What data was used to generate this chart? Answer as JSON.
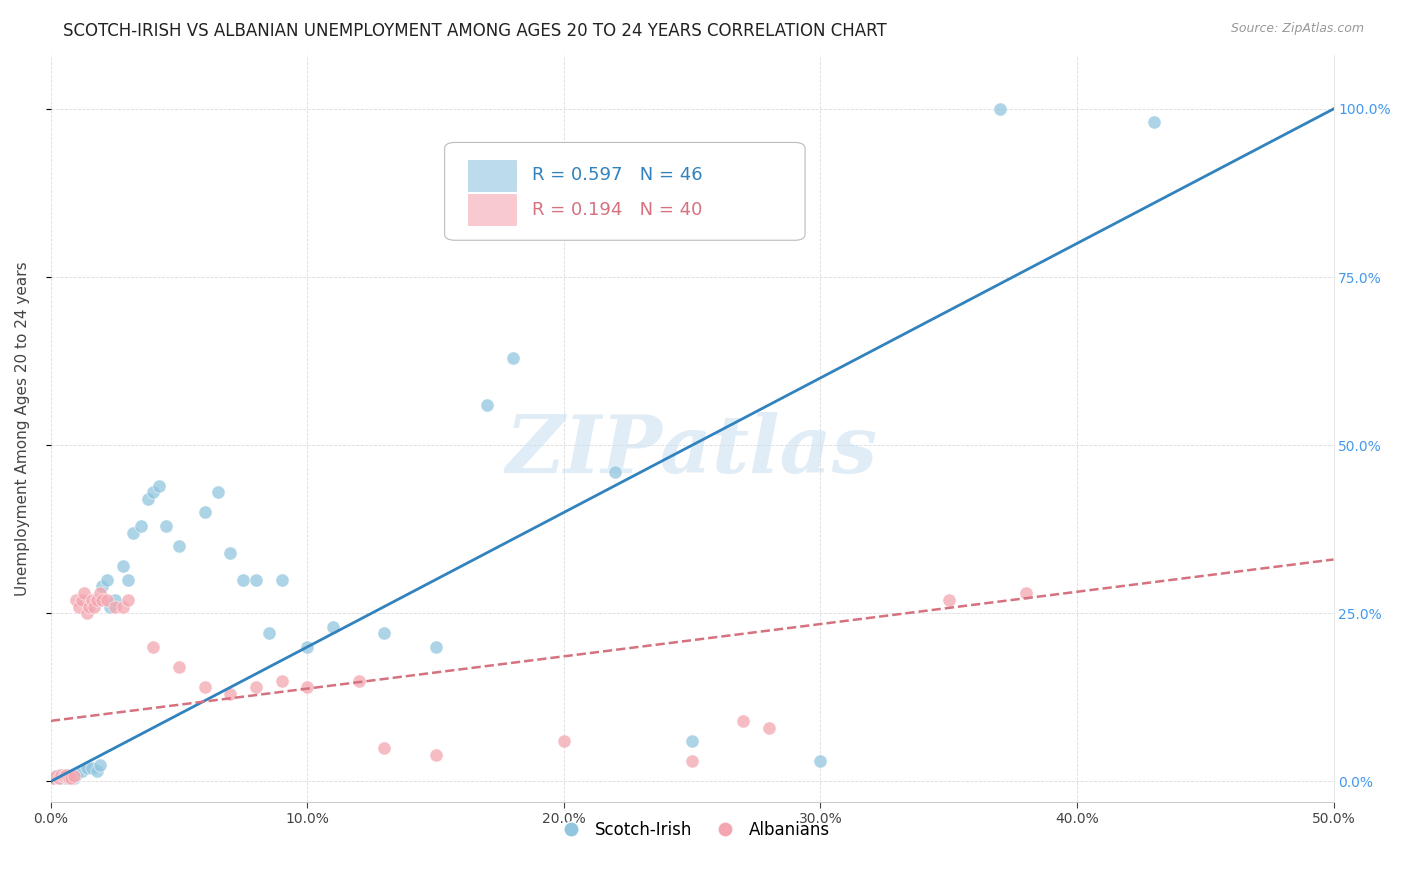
{
  "title": "SCOTCH-IRISH VS ALBANIAN UNEMPLOYMENT AMONG AGES 20 TO 24 YEARS CORRELATION CHART",
  "source": "Source: ZipAtlas.com",
  "ylabel": "Unemployment Among Ages 20 to 24 years",
  "xlim": [
    0.0,
    0.5
  ],
  "ylim": [
    -0.03,
    1.08
  ],
  "xticks": [
    0.0,
    0.1,
    0.2,
    0.3,
    0.4,
    0.5
  ],
  "xticklabels": [
    "0.0%",
    "10.0%",
    "20.0%",
    "30.0%",
    "40.0%",
    "50.0%"
  ],
  "yticks": [
    0.0,
    0.25,
    0.5,
    0.75,
    1.0
  ],
  "right_yticklabels": [
    "0.0%",
    "25.0%",
    "50.0%",
    "75.0%",
    "100.0%"
  ],
  "watermark": "ZIPatlas",
  "legend_si_R": "0.597",
  "legend_si_N": "46",
  "legend_alb_R": "0.194",
  "legend_alb_N": "40",
  "si_color": "#92c5de",
  "si_line_color": "#3182bd",
  "alb_color": "#f4a6b0",
  "alb_line_color": "#d6717f",
  "right_tick_color": "#4499ee",
  "scotch_irish_points": [
    [
      0.001,
      0.005
    ],
    [
      0.002,
      0.008
    ],
    [
      0.003,
      0.01
    ],
    [
      0.004,
      0.005
    ],
    [
      0.005,
      0.01
    ],
    [
      0.006,
      0.005
    ],
    [
      0.007,
      0.008
    ],
    [
      0.008,
      0.01
    ],
    [
      0.009,
      0.005
    ],
    [
      0.01,
      0.01
    ],
    [
      0.012,
      0.015
    ],
    [
      0.014,
      0.02
    ],
    [
      0.016,
      0.02
    ],
    [
      0.018,
      0.015
    ],
    [
      0.019,
      0.025
    ],
    [
      0.02,
      0.29
    ],
    [
      0.022,
      0.3
    ],
    [
      0.023,
      0.26
    ],
    [
      0.025,
      0.27
    ],
    [
      0.028,
      0.32
    ],
    [
      0.03,
      0.3
    ],
    [
      0.032,
      0.37
    ],
    [
      0.035,
      0.38
    ],
    [
      0.038,
      0.42
    ],
    [
      0.04,
      0.43
    ],
    [
      0.042,
      0.44
    ],
    [
      0.045,
      0.38
    ],
    [
      0.05,
      0.35
    ],
    [
      0.06,
      0.4
    ],
    [
      0.065,
      0.43
    ],
    [
      0.07,
      0.34
    ],
    [
      0.075,
      0.3
    ],
    [
      0.08,
      0.3
    ],
    [
      0.085,
      0.22
    ],
    [
      0.09,
      0.3
    ],
    [
      0.1,
      0.2
    ],
    [
      0.11,
      0.23
    ],
    [
      0.13,
      0.22
    ],
    [
      0.15,
      0.2
    ],
    [
      0.17,
      0.56
    ],
    [
      0.18,
      0.63
    ],
    [
      0.22,
      0.46
    ],
    [
      0.25,
      0.06
    ],
    [
      0.3,
      0.03
    ],
    [
      0.37,
      1.0
    ],
    [
      0.43,
      0.98
    ]
  ],
  "albanians_points": [
    [
      0.001,
      0.005
    ],
    [
      0.002,
      0.008
    ],
    [
      0.003,
      0.005
    ],
    [
      0.004,
      0.01
    ],
    [
      0.005,
      0.008
    ],
    [
      0.006,
      0.01
    ],
    [
      0.007,
      0.005
    ],
    [
      0.008,
      0.005
    ],
    [
      0.009,
      0.008
    ],
    [
      0.01,
      0.27
    ],
    [
      0.011,
      0.26
    ],
    [
      0.012,
      0.27
    ],
    [
      0.013,
      0.28
    ],
    [
      0.014,
      0.25
    ],
    [
      0.015,
      0.26
    ],
    [
      0.016,
      0.27
    ],
    [
      0.017,
      0.26
    ],
    [
      0.018,
      0.27
    ],
    [
      0.019,
      0.28
    ],
    [
      0.02,
      0.27
    ],
    [
      0.022,
      0.27
    ],
    [
      0.025,
      0.26
    ],
    [
      0.028,
      0.26
    ],
    [
      0.03,
      0.27
    ],
    [
      0.04,
      0.2
    ],
    [
      0.05,
      0.17
    ],
    [
      0.06,
      0.14
    ],
    [
      0.07,
      0.13
    ],
    [
      0.08,
      0.14
    ],
    [
      0.09,
      0.15
    ],
    [
      0.1,
      0.14
    ],
    [
      0.12,
      0.15
    ],
    [
      0.13,
      0.05
    ],
    [
      0.15,
      0.04
    ],
    [
      0.2,
      0.06
    ],
    [
      0.25,
      0.03
    ],
    [
      0.27,
      0.09
    ],
    [
      0.28,
      0.08
    ],
    [
      0.35,
      0.27
    ],
    [
      0.38,
      0.28
    ]
  ],
  "si_line": {
    "x0": 0.0,
    "y0": 0.0,
    "x1": 0.5,
    "y1": 1.0
  },
  "alb_line": {
    "x0": 0.0,
    "y0": 0.09,
    "x1": 0.5,
    "y1": 0.33
  },
  "background_color": "#ffffff",
  "grid_color": "#cccccc"
}
